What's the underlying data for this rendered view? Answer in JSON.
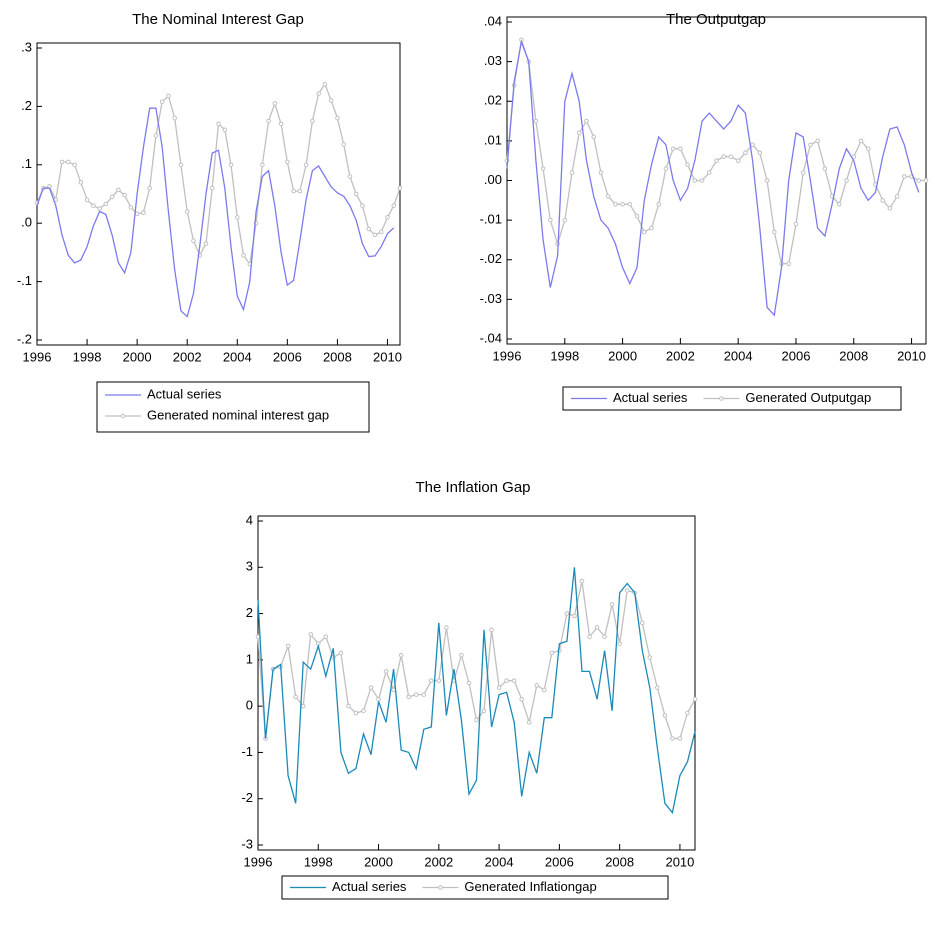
{
  "chart_data": [
    {
      "type": "line",
      "title": "The Nominal Interest Gap",
      "x": [
        1996,
        1996.25,
        1996.5,
        1996.75,
        1997,
        1997.25,
        1997.5,
        1997.75,
        1998,
        1998.25,
        1998.5,
        1998.75,
        1999,
        1999.25,
        1999.5,
        1999.75,
        2000,
        2000.25,
        2000.5,
        2000.75,
        2001,
        2001.25,
        2001.5,
        2001.75,
        2002,
        2002.25,
        2002.5,
        2002.75,
        2003,
        2003.25,
        2003.5,
        2003.75,
        2004,
        2004.25,
        2004.5,
        2004.75,
        2005,
        2005.25,
        2005.5,
        2005.75,
        2006,
        2006.25,
        2006.5,
        2006.75,
        2007,
        2007.25,
        2007.5,
        2007.75,
        2008,
        2008.25,
        2008.5,
        2008.75,
        2009,
        2009.25,
        2009.5,
        2009.75,
        2010,
        2010.25,
        2010.5
      ],
      "xlim": [
        1996,
        2010.5
      ],
      "xticks": [
        1996,
        1998,
        2000,
        2002,
        2004,
        2006,
        2008,
        2010
      ],
      "ylim": [
        -0.2,
        0.3
      ],
      "yticks": [
        {
          "value": -0.2,
          "label": "-.2"
        },
        {
          "value": -0.1,
          "label": "-.1"
        },
        {
          "value": 0,
          "label": ".0"
        },
        {
          "value": 0.1,
          "label": ".1"
        },
        {
          "value": 0.2,
          "label": ".2"
        },
        {
          "value": 0.3,
          "label": ".3"
        }
      ],
      "series": [
        {
          "name": "Actual series",
          "color": "#7b7bef",
          "values": [
            0.03,
            0.06,
            0.06,
            0.03,
            -0.02,
            -0.055,
            -0.068,
            -0.063,
            -0.04,
            -0.005,
            0.02,
            0.015,
            -0.02,
            -0.068,
            -0.085,
            -0.05,
            0.05,
            0.13,
            0.197,
            0.197,
            0.13,
            0.02,
            -0.08,
            -0.15,
            -0.16,
            -0.12,
            -0.04,
            0.05,
            0.12,
            0.125,
            0.06,
            -0.04,
            -0.125,
            -0.148,
            -0.1,
            0.02,
            0.08,
            0.09,
            0.03,
            -0.05,
            -0.106,
            -0.098,
            -0.03,
            0.04,
            0.09,
            0.098,
            0.08,
            0.062,
            0.052,
            0.046,
            0.03,
            0.005,
            -0.035,
            -0.057,
            -0.056,
            -0.04,
            -0.018,
            -0.008,
            null
          ]
        },
        {
          "name": "Generated nominal interest gap",
          "color": "#c0c0c0",
          "marker": "circle",
          "values": [
            0.035,
            0.06,
            0.063,
            0.04,
            0.105,
            0.105,
            0.1,
            0.07,
            0.04,
            0.03,
            0.025,
            0.033,
            0.045,
            0.057,
            0.048,
            0.027,
            0.016,
            0.018,
            0.06,
            0.15,
            0.208,
            0.218,
            0.18,
            0.1,
            0.02,
            -0.03,
            -0.055,
            -0.035,
            0.06,
            0.17,
            0.16,
            0.1,
            0.01,
            -0.055,
            -0.07,
            0.0,
            0.1,
            0.175,
            0.205,
            0.17,
            0.105,
            0.055,
            0.055,
            0.1,
            0.175,
            0.222,
            0.238,
            0.21,
            0.18,
            0.135,
            0.08,
            0.05,
            0.03,
            -0.01,
            -0.02,
            -0.015,
            0.01,
            0.03,
            0.06
          ]
        }
      ]
    },
    {
      "type": "line",
      "title": "The Outputgap",
      "x": [
        1996,
        1996.25,
        1996.5,
        1996.75,
        1997,
        1997.25,
        1997.5,
        1997.75,
        1998,
        1998.25,
        1998.5,
        1998.75,
        1999,
        1999.25,
        1999.5,
        1999.75,
        2000,
        2000.25,
        2000.5,
        2000.75,
        2001,
        2001.25,
        2001.5,
        2001.75,
        2002,
        2002.25,
        2002.5,
        2002.75,
        2003,
        2003.25,
        2003.5,
        2003.75,
        2004,
        2004.25,
        2004.5,
        2004.75,
        2005,
        2005.25,
        2005.5,
        2005.75,
        2006,
        2006.25,
        2006.5,
        2006.75,
        2007,
        2007.25,
        2007.5,
        2007.75,
        2008,
        2008.25,
        2008.5,
        2008.75,
        2009,
        2009.25,
        2009.5,
        2009.75,
        2010,
        2010.25,
        2010.5
      ],
      "xlim": [
        1996,
        2010.5
      ],
      "xticks": [
        1996,
        1998,
        2000,
        2002,
        2004,
        2006,
        2008,
        2010
      ],
      "ylim": [
        -0.04,
        0.04
      ],
      "yticks": [
        {
          "value": -0.04,
          "label": "-.04"
        },
        {
          "value": -0.03,
          "label": "-.03"
        },
        {
          "value": -0.02,
          "label": "-.02"
        },
        {
          "value": -0.01,
          "label": "-.01"
        },
        {
          "value": 0,
          "label": ".00"
        },
        {
          "value": 0.01,
          "label": ".01"
        },
        {
          "value": 0.02,
          "label": ".02"
        },
        {
          "value": 0.03,
          "label": ".03"
        },
        {
          "value": 0.04,
          "label": ".04"
        }
      ],
      "series": [
        {
          "name": "Actual series",
          "color": "#7b7bef",
          "values": [
            0.003,
            0.025,
            0.035,
            0.03,
            0.005,
            -0.015,
            -0.027,
            -0.019,
            0.02,
            0.027,
            0.02,
            0.005,
            -0.004,
            -0.01,
            -0.012,
            -0.016,
            -0.022,
            -0.026,
            -0.022,
            -0.005,
            0.004,
            0.011,
            0.009,
            0.0,
            -0.005,
            -0.002,
            0.005,
            0.015,
            0.017,
            0.015,
            0.013,
            0.015,
            0.019,
            0.017,
            0.005,
            -0.012,
            -0.032,
            -0.034,
            -0.022,
            0.0,
            0.012,
            0.011,
            0.0,
            -0.012,
            -0.014,
            -0.006,
            0.003,
            0.008,
            0.005,
            -0.002,
            -0.005,
            -0.003,
            0.006,
            0.013,
            0.0135,
            0.009,
            0.002,
            -0.003,
            null
          ]
        },
        {
          "name": "Generated Outputgap",
          "color": "#c0c0c0",
          "marker": "circle",
          "values": [
            0.005,
            0.024,
            0.0355,
            0.03,
            0.015,
            0.003,
            -0.01,
            -0.016,
            -0.01,
            0.002,
            0.012,
            0.015,
            0.011,
            0.002,
            -0.004,
            -0.006,
            -0.006,
            -0.006,
            -0.009,
            -0.013,
            -0.012,
            -0.006,
            0.003,
            0.008,
            0.008,
            0.004,
            0.0,
            0.0,
            0.002,
            0.005,
            0.006,
            0.006,
            0.005,
            0.007,
            0.009,
            0.007,
            0.0,
            -0.013,
            -0.021,
            -0.021,
            -0.011,
            0.002,
            0.009,
            0.01,
            0.003,
            -0.004,
            -0.006,
            0.0,
            0.006,
            0.01,
            0.008,
            -0.001,
            -0.005,
            -0.007,
            -0.004,
            0.001,
            0.001,
            0.0,
            0.0
          ]
        }
      ]
    },
    {
      "type": "line",
      "title": "The Inflation Gap",
      "x": [
        1996,
        1996.25,
        1996.5,
        1996.75,
        1997,
        1997.25,
        1997.5,
        1997.75,
        1998,
        1998.25,
        1998.5,
        1998.75,
        1999,
        1999.25,
        1999.5,
        1999.75,
        2000,
        2000.25,
        2000.5,
        2000.75,
        2001,
        2001.25,
        2001.5,
        2001.75,
        2002,
        2002.25,
        2002.5,
        2002.75,
        2003,
        2003.25,
        2003.5,
        2003.75,
        2004,
        2004.25,
        2004.5,
        2004.75,
        2005,
        2005.25,
        2005.5,
        2005.75,
        2006,
        2006.25,
        2006.5,
        2006.75,
        2007,
        2007.25,
        2007.5,
        2007.75,
        2008,
        2008.25,
        2008.5,
        2008.75,
        2009,
        2009.25,
        2009.5,
        2009.75,
        2010,
        2010.25,
        2010.5
      ],
      "xlim": [
        1996,
        2010.5
      ],
      "xticks": [
        1996,
        1998,
        2000,
        2002,
        2004,
        2006,
        2008,
        2010
      ],
      "ylim": [
        -3,
        4
      ],
      "yticks": [
        -3,
        -2,
        -1,
        0,
        1,
        2,
        3,
        4
      ],
      "series": [
        {
          "name": "Actual series",
          "color": "#1a8ab8",
          "values": [
            2.3,
            -0.7,
            0.8,
            0.9,
            -1.5,
            -2.1,
            0.95,
            0.8,
            1.3,
            0.65,
            1.25,
            -1.0,
            -1.45,
            -1.35,
            -0.6,
            -1.05,
            0.1,
            -0.35,
            0.8,
            -0.95,
            -1.0,
            -1.35,
            -0.5,
            -0.45,
            1.8,
            -0.2,
            0.8,
            -0.3,
            -1.9,
            -1.6,
            1.65,
            -0.45,
            0.25,
            0.3,
            -0.35,
            -1.95,
            -1.0,
            -1.45,
            -0.25,
            -0.25,
            1.35,
            1.4,
            3.0,
            0.75,
            0.75,
            0.15,
            1.2,
            -0.1,
            2.45,
            2.65,
            2.45,
            1.2,
            0.4,
            -0.9,
            -2.1,
            -2.3,
            -1.5,
            -1.2,
            -0.55
          ]
        },
        {
          "name": "Generated Inflationgap",
          "color": "#c0c0c0",
          "marker": "circle",
          "values": [
            1.5,
            -0.7,
            0.8,
            0.85,
            1.3,
            0.2,
            0.0,
            1.55,
            1.35,
            1.5,
            1.05,
            1.15,
            0.0,
            -0.15,
            -0.1,
            0.4,
            0.15,
            0.75,
            0.35,
            1.1,
            0.2,
            0.25,
            0.25,
            0.55,
            0.55,
            1.7,
            0.55,
            1.1,
            0.5,
            -0.3,
            -0.1,
            1.65,
            0.4,
            0.55,
            0.55,
            0.15,
            -0.35,
            0.45,
            0.35,
            1.15,
            1.2,
            2.0,
            1.95,
            2.7,
            1.5,
            1.7,
            1.5,
            2.2,
            1.35,
            2.5,
            2.45,
            1.8,
            1.05,
            0.4,
            -0.2,
            -0.7,
            -0.7,
            -0.15,
            0.15
          ]
        }
      ]
    }
  ]
}
